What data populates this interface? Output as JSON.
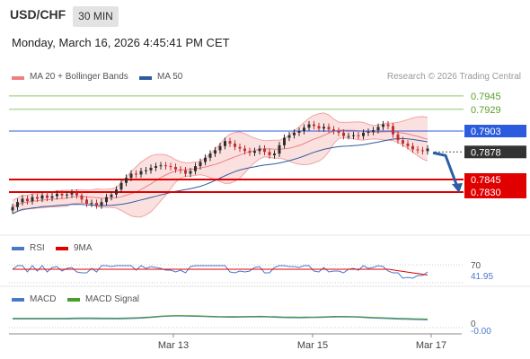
{
  "header": {
    "symbol": "USD/CHF",
    "timeframe": "30 MIN",
    "datetime": "Monday, March 16, 2026 4:45:41 PM CET"
  },
  "legend_main": {
    "items": [
      {
        "label": "MA 20 + Bollinger Bands",
        "color": "#f08080"
      },
      {
        "label": "MA 50",
        "color": "#2c5c9e"
      }
    ],
    "credit": "Research © 2026 Trading Central"
  },
  "price_levels": [
    {
      "label": "0.7945",
      "value": 0.7945,
      "color": "#5aa02c",
      "style": "text"
    },
    {
      "label": "0.7929",
      "value": 0.7929,
      "color": "#5aa02c",
      "style": "text"
    },
    {
      "label": "0.7903",
      "value": 0.7903,
      "color": "#2c5cdd",
      "style": "box"
    },
    {
      "label": "0.7878",
      "value": 0.7878,
      "color": "#333333",
      "style": "box"
    },
    {
      "label": "0.7845",
      "value": 0.7845,
      "color": "#e00000",
      "style": "box"
    },
    {
      "label": "0.7830",
      "value": 0.783,
      "color": "#e00000",
      "style": "box"
    }
  ],
  "rsi": {
    "legend": [
      {
        "label": "RSI",
        "color": "#4a78c8"
      },
      {
        "label": "9MA",
        "color": "#e00000"
      }
    ],
    "level_label": "70",
    "value_label": "41.95"
  },
  "macd": {
    "legend": [
      {
        "label": "MACD",
        "color": "#4a78c8"
      },
      {
        "label": "MACD Signal",
        "color": "#4a9e2c"
      }
    ],
    "zero_label": "0",
    "value_label": "-0.00"
  },
  "x_axis": {
    "labels": [
      "Mar 13",
      "Mar 15",
      "Mar 17"
    ]
  },
  "chart_data": {
    "type": "candlestick",
    "levels": [
      0.7945,
      0.7929,
      0.7903,
      0.7878,
      0.7845,
      0.783
    ],
    "close": [
      0.7812,
      0.7818,
      0.7822,
      0.7819,
      0.7824,
      0.7822,
      0.7826,
      0.7823,
      0.7825,
      0.7828,
      0.7826,
      0.7827,
      0.7829,
      0.7826,
      0.7821,
      0.7816,
      0.7817,
      0.7814,
      0.7818,
      0.7824,
      0.7827,
      0.7833,
      0.7841,
      0.7847,
      0.7852,
      0.7851,
      0.7855,
      0.7856,
      0.7859,
      0.7861,
      0.7862,
      0.7861,
      0.786,
      0.7857,
      0.7856,
      0.7852,
      0.7855,
      0.7861,
      0.7866,
      0.7871,
      0.7876,
      0.788,
      0.7885,
      0.7891,
      0.7888,
      0.7884,
      0.7882,
      0.7879,
      0.7877,
      0.7879,
      0.7882,
      0.7878,
      0.7874,
      0.7876,
      0.7886,
      0.7895,
      0.7898,
      0.7901,
      0.7903,
      0.7907,
      0.7911,
      0.7909,
      0.7906,
      0.7908,
      0.7905,
      0.7903,
      0.7901,
      0.7897,
      0.7897,
      0.7898,
      0.7897,
      0.7901,
      0.7902,
      0.7904,
      0.7908,
      0.7911,
      0.7909,
      0.7899,
      0.7892,
      0.7888,
      0.7885,
      0.7881,
      0.788,
      0.7879,
      0.7882
    ]
  }
}
